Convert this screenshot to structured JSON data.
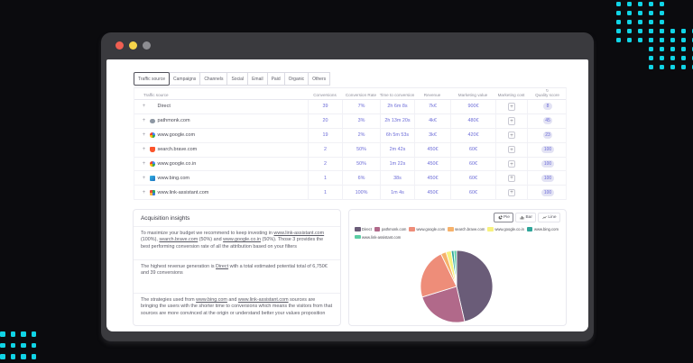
{
  "background": {
    "color": "#0b0b0e",
    "dot_color": "#10d4e6"
  },
  "window": {
    "titlebar_color": "#3a3a3e",
    "traffic_lights": [
      "#ef5f52",
      "#f6d44a",
      "#8d8d92"
    ]
  },
  "tabs": [
    {
      "label": "Traffic source",
      "active": true
    },
    {
      "label": "Campaigns"
    },
    {
      "label": "Channels"
    },
    {
      "label": "Social"
    },
    {
      "label": "Email"
    },
    {
      "label": "Paid"
    },
    {
      "label": "Organic"
    },
    {
      "label": "Others"
    }
  ],
  "table": {
    "columns": [
      "Traffic source",
      "Conversions",
      "Conversion Rate",
      "Time to conversion",
      "Revenue",
      "Marketing value",
      "Marketing cost",
      "Quality score"
    ],
    "rows": [
      {
        "source": "Direct",
        "favicon": "",
        "conversions": "39",
        "rate": "7%",
        "time": "2h 6m 8s",
        "revenue": "7k€",
        "value": "900€",
        "cost_button": "+",
        "score": "8"
      },
      {
        "source": "pathmonk.com",
        "favicon": "pathmonk",
        "conversions": "20",
        "rate": "3%",
        "time": "2h 13m 20s",
        "revenue": "4k€",
        "value": "480€",
        "cost_button": "+",
        "score": "45"
      },
      {
        "source": "www.google.com",
        "favicon": "google",
        "conversions": "19",
        "rate": "2%",
        "time": "6h 5m 53s",
        "revenue": "3k€",
        "value": "420€",
        "cost_button": "+",
        "score": "23"
      },
      {
        "source": "search.brave.com",
        "favicon": "brave",
        "conversions": "2",
        "rate": "50%",
        "time": "2m 42s",
        "revenue": "450€",
        "value": "60€",
        "cost_button": "+",
        "score": "100"
      },
      {
        "source": "www.google.co.in",
        "favicon": "google",
        "conversions": "2",
        "rate": "50%",
        "time": "1m 22s",
        "revenue": "450€",
        "value": "60€",
        "cost_button": "+",
        "score": "100"
      },
      {
        "source": "www.bing.com",
        "favicon": "bing",
        "conversions": "1",
        "rate": "6%",
        "time": "38s",
        "revenue": "450€",
        "value": "60€",
        "cost_button": "+",
        "score": "100"
      },
      {
        "source": "www.link-assistant.com",
        "favicon": "link-assistant",
        "conversions": "1",
        "rate": "100%",
        "time": "1m 4s",
        "revenue": "450€",
        "value": "60€",
        "cost_button": "+",
        "score": "100"
      }
    ]
  },
  "insights": {
    "title": "Acquisition insights",
    "paragraphs": [
      [
        {
          "t": "To maximize your budget we recommend to keep investing in "
        },
        {
          "t": "www.link-assistant.com",
          "link": true
        },
        {
          "t": " (100%), "
        },
        {
          "t": "search.brave.com",
          "link": true
        },
        {
          "t": " (50%) and "
        },
        {
          "t": "www.google.co.in",
          "link": true
        },
        {
          "t": " (50%). Those 3 provides the best performing conversion rate of all the attribution based on your filters"
        }
      ],
      [
        {
          "t": "The highest revenue generation is "
        },
        {
          "t": "Direct",
          "link": true
        },
        {
          "t": " with a total estimated potential total of 6,750€ and 39 conversions"
        }
      ],
      [
        {
          "t": "The strategies used from "
        },
        {
          "t": "www.bing.com",
          "link": true
        },
        {
          "t": " and "
        },
        {
          "t": "www.link-assistant.com",
          "link": true
        },
        {
          "t": " sources are bringing the users with the shorter time to conversions which means the visitors from that sources are more convinced at the origin or understand better your values proposition"
        }
      ]
    ]
  },
  "chart": {
    "buttons": [
      {
        "label": "Pie",
        "icon": "pie-chart",
        "active": true
      },
      {
        "label": "Bar",
        "icon": "bar-chart",
        "active": false
      },
      {
        "label": "Line",
        "icon": "line-chart",
        "active": false
      }
    ]
  },
  "chart_data": {
    "type": "pie",
    "title": "",
    "categories": [
      "Direct",
      "pathmonk.com",
      "www.google.com",
      "search.brave.com",
      "www.google.co.in",
      "www.bing.com",
      "www.link-assistant.com"
    ],
    "values": [
      39,
      20,
      19,
      2,
      2,
      1,
      1
    ],
    "colors": [
      "#6a5c78",
      "#b1698a",
      "#ee8d79",
      "#f6b26b",
      "#f7f17e",
      "#2fa69a",
      "#5bcda4"
    ],
    "legend_position": "top"
  }
}
